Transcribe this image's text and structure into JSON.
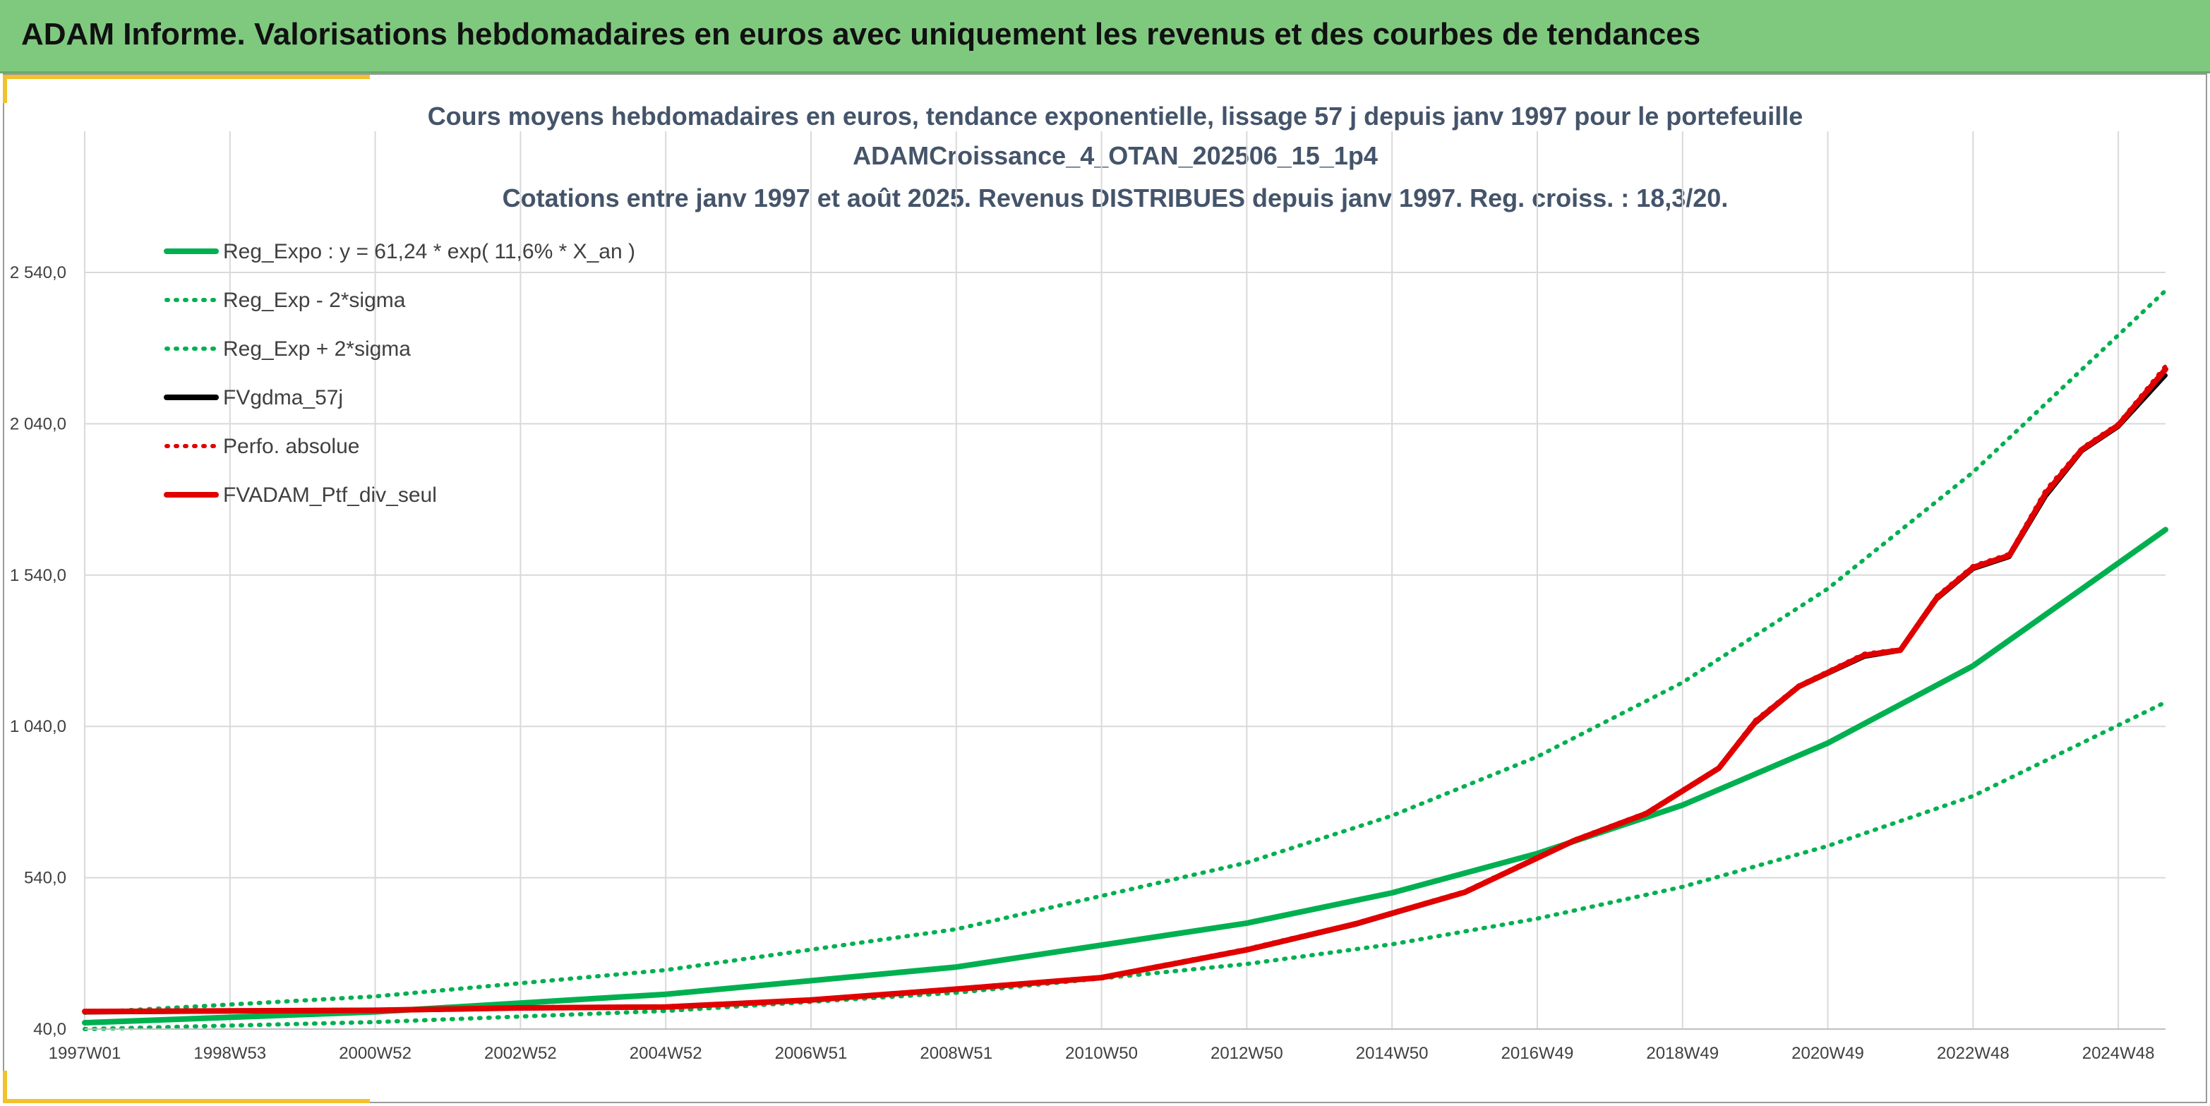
{
  "banner": {
    "title": "ADAM Informe. Valorisations hebdomadaires en euros avec uniquement les revenus et des courbes de tendances"
  },
  "chart_data": {
    "type": "line",
    "title_lines": [
      "Cours moyens hebdomadaires en euros, tendance exponentielle, lissage 57 j depuis janv 1997 pour le portefeuille",
      "ADAMCroissance_4_OTAN_202506_15_1p4",
      "Cotations entre janv 1997 et août 2025. Revenus DISTRIBUES depuis janv 1997. Reg. croiss. : 18,3/20."
    ],
    "xlabel": "",
    "ylabel": "",
    "x_tick_labels": [
      "1997W01",
      "1998W53",
      "2000W52",
      "2002W52",
      "2004W52",
      "2006W51",
      "2008W51",
      "2010W50",
      "2012W50",
      "2014W50",
      "2016W49",
      "2018W49",
      "2020W49",
      "2022W48",
      "2024W48"
    ],
    "x_ticks_years": [
      1997.0,
      1999.0,
      2001.0,
      2003.0,
      2005.0,
      2007.0,
      2009.0,
      2011.0,
      2013.0,
      2015.0,
      2017.0,
      2019.0,
      2021.0,
      2023.0,
      2025.0
    ],
    "y_tick_labels": [
      "40,0",
      "540,0",
      "1 040,0",
      "1 540,0",
      "2 040,0",
      "2 540,0"
    ],
    "y_ticks": [
      40,
      540,
      1040,
      1540,
      2040,
      2540
    ],
    "xlim": [
      1997.0,
      2025.65
    ],
    "ylim": [
      40,
      2540
    ],
    "grid": true,
    "legend_position": "top-left",
    "colors": {
      "green": "#00b050",
      "black": "#000000",
      "red": "#e00000"
    },
    "series": [
      {
        "name": "Reg_Expo : y = 61,24 * exp( 11,6% *  X_an )",
        "style": "solid",
        "color": "#00b050",
        "x": [
          1997.0,
          2001.0,
          2005.0,
          2009.0,
          2013.0,
          2015.0,
          2017.0,
          2019.0,
          2021.0,
          2023.0,
          2025.65
        ],
        "y": [
          61,
          97,
          155,
          245,
          390,
          490,
          620,
          780,
          985,
          1240,
          1690
        ]
      },
      {
        "name": "Reg_Exp - 2*sigma",
        "style": "dotted",
        "color": "#00b050",
        "x": [
          1997.0,
          2001.0,
          2005.0,
          2009.0,
          2013.0,
          2015.0,
          2017.0,
          2019.0,
          2021.0,
          2023.0,
          2025.65
        ],
        "y": [
          40,
          63,
          100,
          160,
          255,
          320,
          405,
          510,
          645,
          810,
          1120
        ]
      },
      {
        "name": "Reg_Exp + 2*sigma",
        "style": "dotted",
        "color": "#00b050",
        "x": [
          1997.0,
          2001.0,
          2005.0,
          2009.0,
          2013.0,
          2015.0,
          2017.0,
          2019.0,
          2021.0,
          2023.0,
          2025.65
        ],
        "y": [
          94,
          148,
          235,
          370,
          590,
          745,
          940,
          1185,
          1495,
          1880,
          2480
        ]
      },
      {
        "name": "FVgdma_57j",
        "style": "solid",
        "color": "#000000",
        "x": [
          1997.0,
          1999.0,
          2001.0,
          2003.0,
          2005.0,
          2007.0,
          2009.0,
          2011.0,
          2013.0,
          2014.5,
          2016.0,
          2017.5,
          2018.5,
          2019.5,
          2020.0,
          2020.6,
          2021.5,
          2022.0,
          2022.5,
          2023.0,
          2023.5,
          2024.0,
          2024.5,
          2025.0,
          2025.65
        ],
        "y": [
          95,
          98,
          100,
          108,
          112,
          135,
          170,
          210,
          300,
          385,
          490,
          660,
          750,
          900,
          1050,
          1170,
          1270,
          1290,
          1460,
          1560,
          1600,
          1800,
          1950,
          2030,
          2200
        ]
      },
      {
        "name": "Perfo. absolue",
        "style": "dotted",
        "color": "#e00000",
        "x": [
          1997.0,
          1999.0,
          2001.0,
          2003.0,
          2005.0,
          2007.0,
          2009.0,
          2011.0,
          2013.0,
          2014.5,
          2016.0,
          2017.5,
          2018.5,
          2019.5,
          2020.0,
          2020.6,
          2021.5,
          2022.0,
          2022.5,
          2023.0,
          2023.5,
          2024.0,
          2024.5,
          2025.0,
          2025.65
        ],
        "y": [
          100,
          102,
          104,
          112,
          115,
          138,
          174,
          212,
          305,
          390,
          495,
          665,
          755,
          905,
          1060,
          1175,
          1280,
          1295,
          1470,
          1570,
          1610,
          1820,
          1960,
          2040,
          2230
        ]
      },
      {
        "name": "FVADAM_Ptf_div_seul",
        "style": "solid",
        "color": "#e00000",
        "x": [
          1997.0,
          1999.0,
          2001.0,
          2003.0,
          2005.0,
          2007.0,
          2009.0,
          2011.0,
          2013.0,
          2014.5,
          2016.0,
          2017.5,
          2018.5,
          2019.5,
          2020.0,
          2020.6,
          2021.5,
          2022.0,
          2022.5,
          2023.0,
          2023.5,
          2024.0,
          2024.5,
          2025.0,
          2025.65
        ],
        "y": [
          98,
          100,
          102,
          110,
          113,
          136,
          172,
          210,
          302,
          388,
          492,
          662,
          752,
          902,
          1055,
          1172,
          1275,
          1292,
          1465,
          1565,
          1605,
          1810,
          1955,
          2035,
          2220
        ]
      }
    ]
  }
}
